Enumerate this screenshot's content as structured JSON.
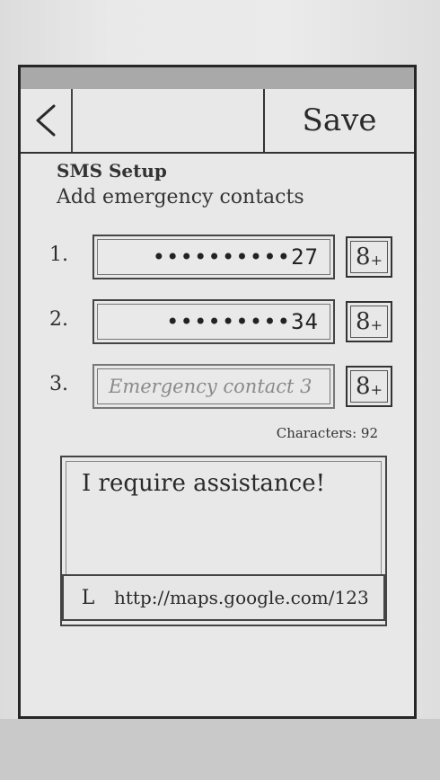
{
  "header": {
    "back_label": "<",
    "save_label": "Save"
  },
  "sms_setup": {
    "title": "SMS Setup",
    "subtitle": "Add emergency contacts"
  },
  "contacts": [
    {
      "number": "1.",
      "value": "••••••••••27",
      "add_label": "8",
      "add_plus": "+"
    },
    {
      "number": "2.",
      "value": "•••••••••34",
      "add_label": "8",
      "add_plus": "+"
    },
    {
      "number": "3.",
      "placeholder": "Emergency contact 3",
      "add_label": "8",
      "add_plus": "+"
    }
  ],
  "message": {
    "char_count": "Characters: 92",
    "text": "I require assistance!",
    "link_icon": "L",
    "link": "http://maps.google.com/123"
  }
}
